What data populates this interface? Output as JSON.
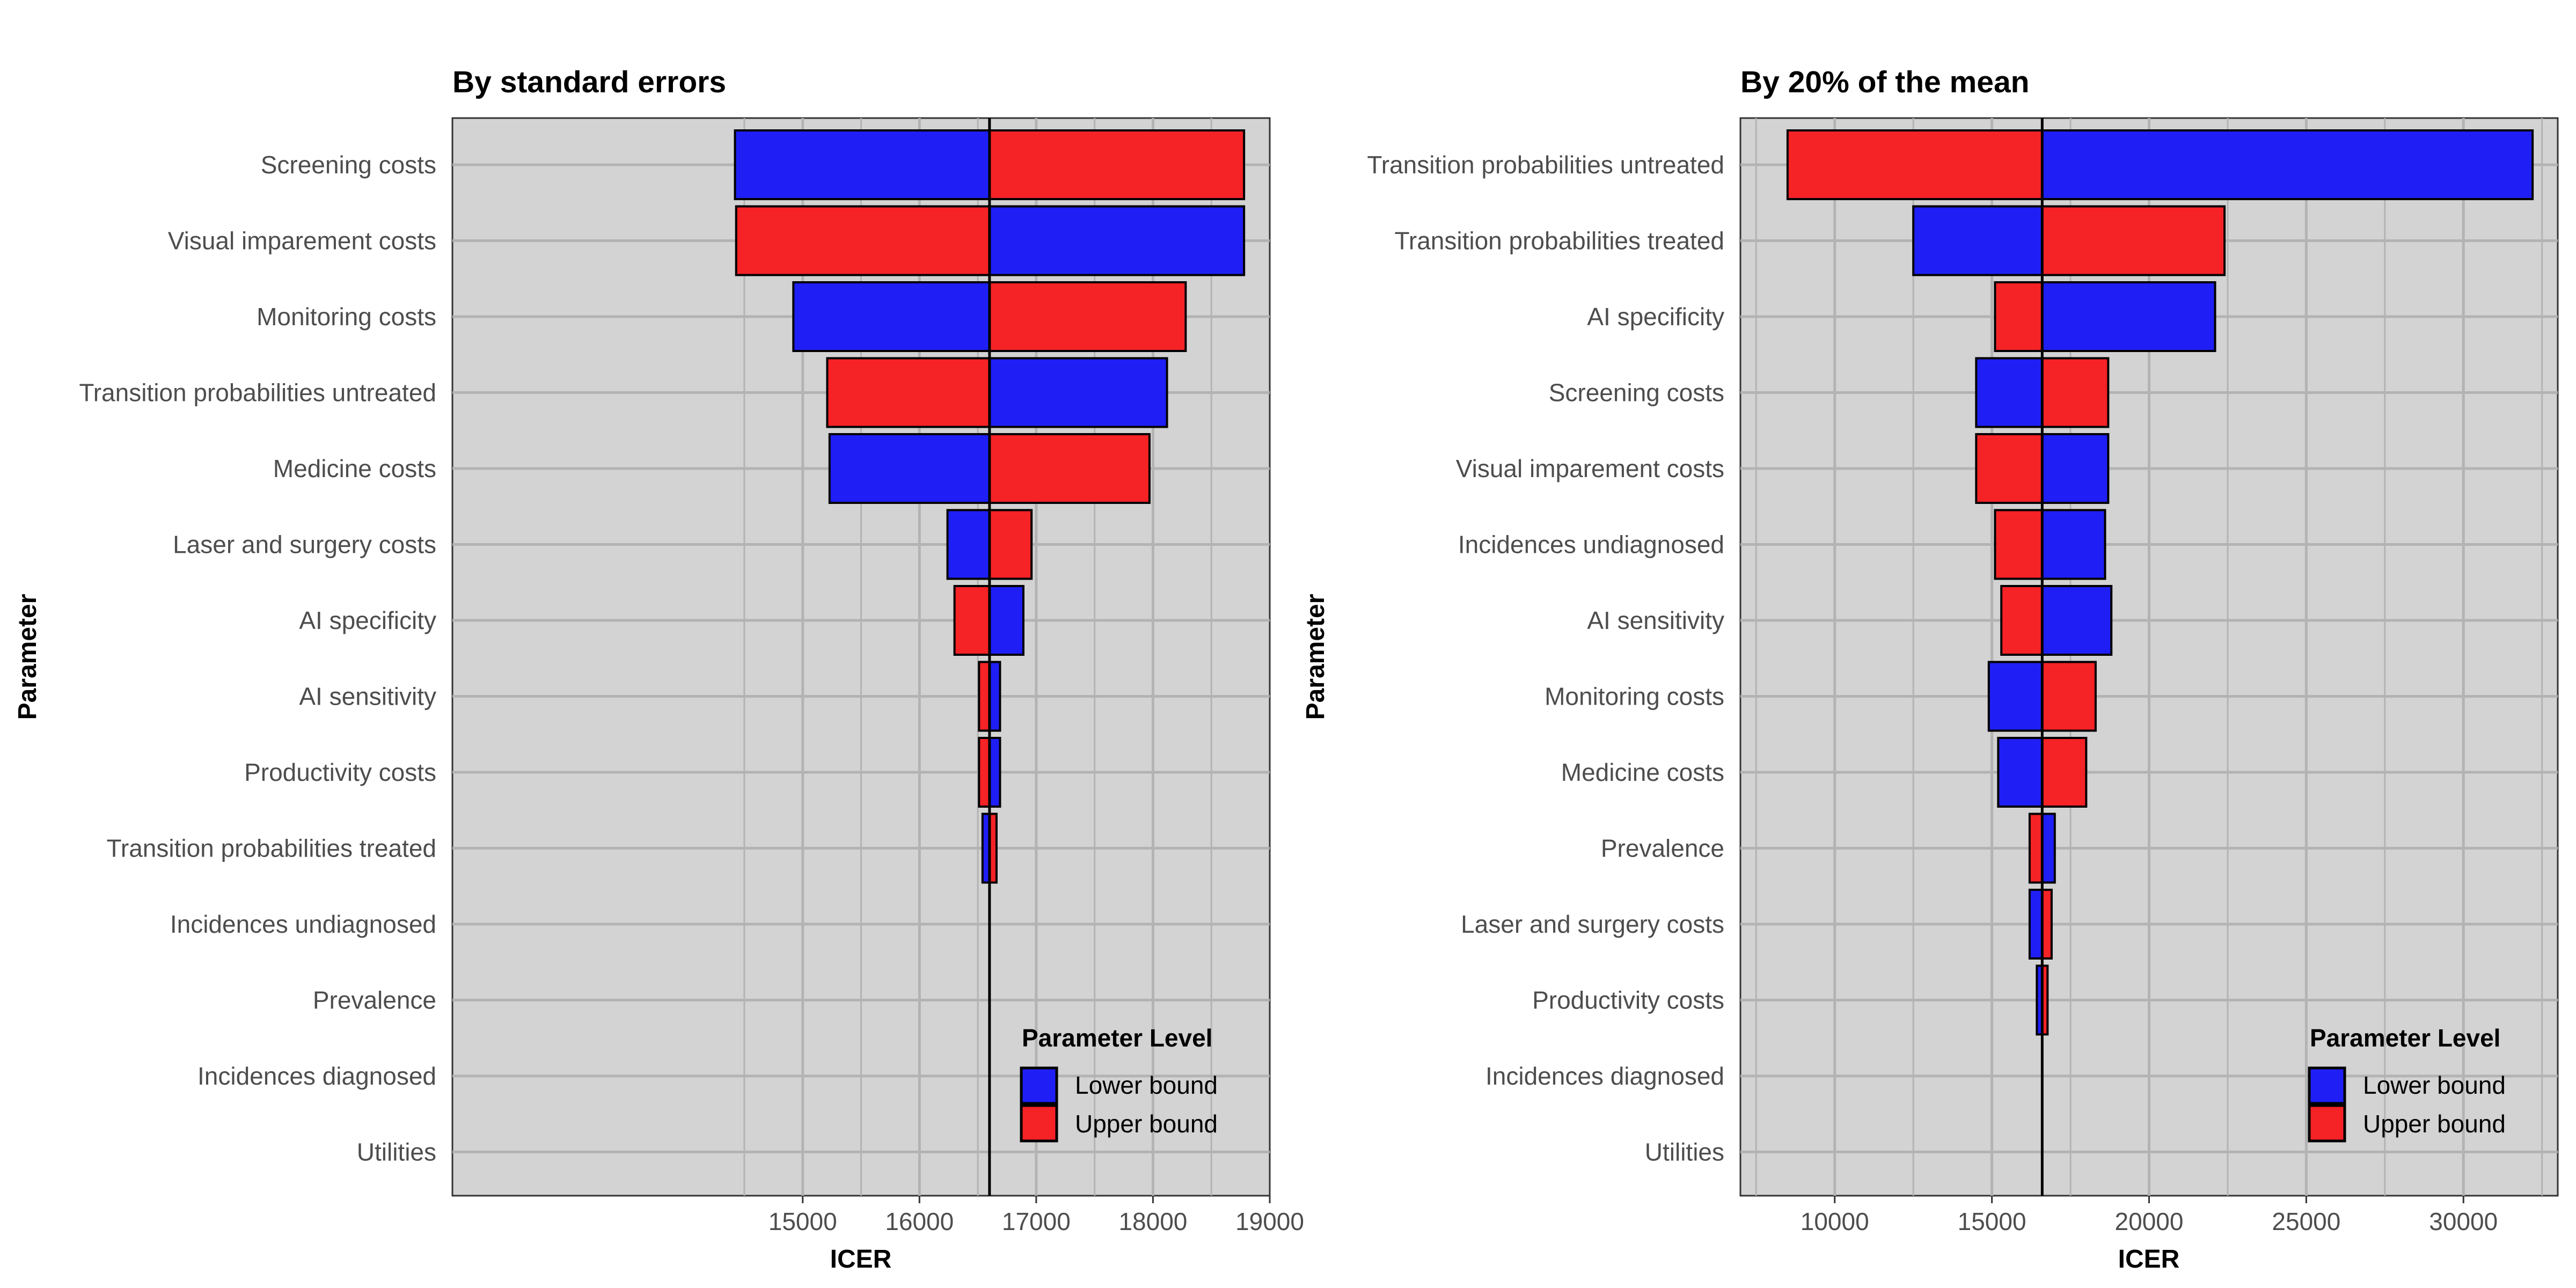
{
  "colors": {
    "panel_bg": "#d3d3d3",
    "grid": "#b3b3b3",
    "lower_bound": "#1f1ff5",
    "upper_bound": "#f52226",
    "outline": "#000000"
  },
  "legend": {
    "title": "Parameter Level",
    "lower_label": "Lower bound",
    "upper_label": "Upper bound",
    "placement": "bottom-right"
  },
  "chart_data": [
    {
      "type": "bar",
      "orientation": "horizontal",
      "title": "By standard errors",
      "xlabel": "ICER",
      "ylabel": "Parameter",
      "base": 16600,
      "xlim": [
        12000,
        19000
      ],
      "x_ticks": [
        15000,
        16000,
        17000,
        18000,
        19000
      ],
      "grid": true,
      "categories": [
        "Screening costs",
        "Visual imparement costs",
        "Monitoring costs",
        "Transition probabilities untreated",
        "Medicine costs",
        "Laser and surgery costs",
        "AI specificity",
        "AI sensitivity",
        "Productivity costs",
        "Transition probabilities treated",
        "Incidences undiagnosed ",
        "Prevalence",
        "Incidences diagnosed ",
        "Utilities"
      ],
      "series": [
        {
          "name": "Lower bound",
          "values": [
            14420,
            18780,
            14920,
            18120,
            15230,
            16240,
            16890,
            16690,
            16690,
            16540,
            16600,
            16600,
            16600,
            16600
          ]
        },
        {
          "name": "Upper bound",
          "values": [
            18780,
            14430,
            18280,
            15210,
            17970,
            16960,
            16300,
            16510,
            16510,
            16660,
            16600,
            16600,
            16600,
            16600
          ]
        }
      ]
    },
    {
      "type": "bar",
      "orientation": "horizontal",
      "title": "By 20% of the mean",
      "xlabel": "ICER",
      "ylabel": "Parameter",
      "base": 16600,
      "xlim": [
        7000,
        33000
      ],
      "x_ticks": [
        10000,
        15000,
        20000,
        25000,
        30000
      ],
      "grid": true,
      "categories": [
        "Transition probabilities untreated",
        "Transition probabilities treated",
        "AI specificity",
        "Screening costs",
        "Visual imparement costs",
        "Incidences undiagnosed ",
        "AI sensitivity",
        "Monitoring costs",
        "Medicine costs",
        "Prevalence",
        "Laser and surgery costs",
        "Productivity costs",
        "Incidences diagnosed ",
        "Utilities"
      ],
      "series": [
        {
          "name": "Lower bound",
          "values": [
            32200,
            12500,
            22100,
            14500,
            18700,
            18600,
            18800,
            14900,
            15200,
            17000,
            16200,
            16500,
            16600,
            16600
          ]
        },
        {
          "name": "Upper bound",
          "values": [
            8500,
            22400,
            15100,
            18700,
            14500,
            15100,
            15300,
            18300,
            18000,
            16200,
            16900,
            16700,
            16600,
            16600
          ]
        }
      ]
    }
  ]
}
